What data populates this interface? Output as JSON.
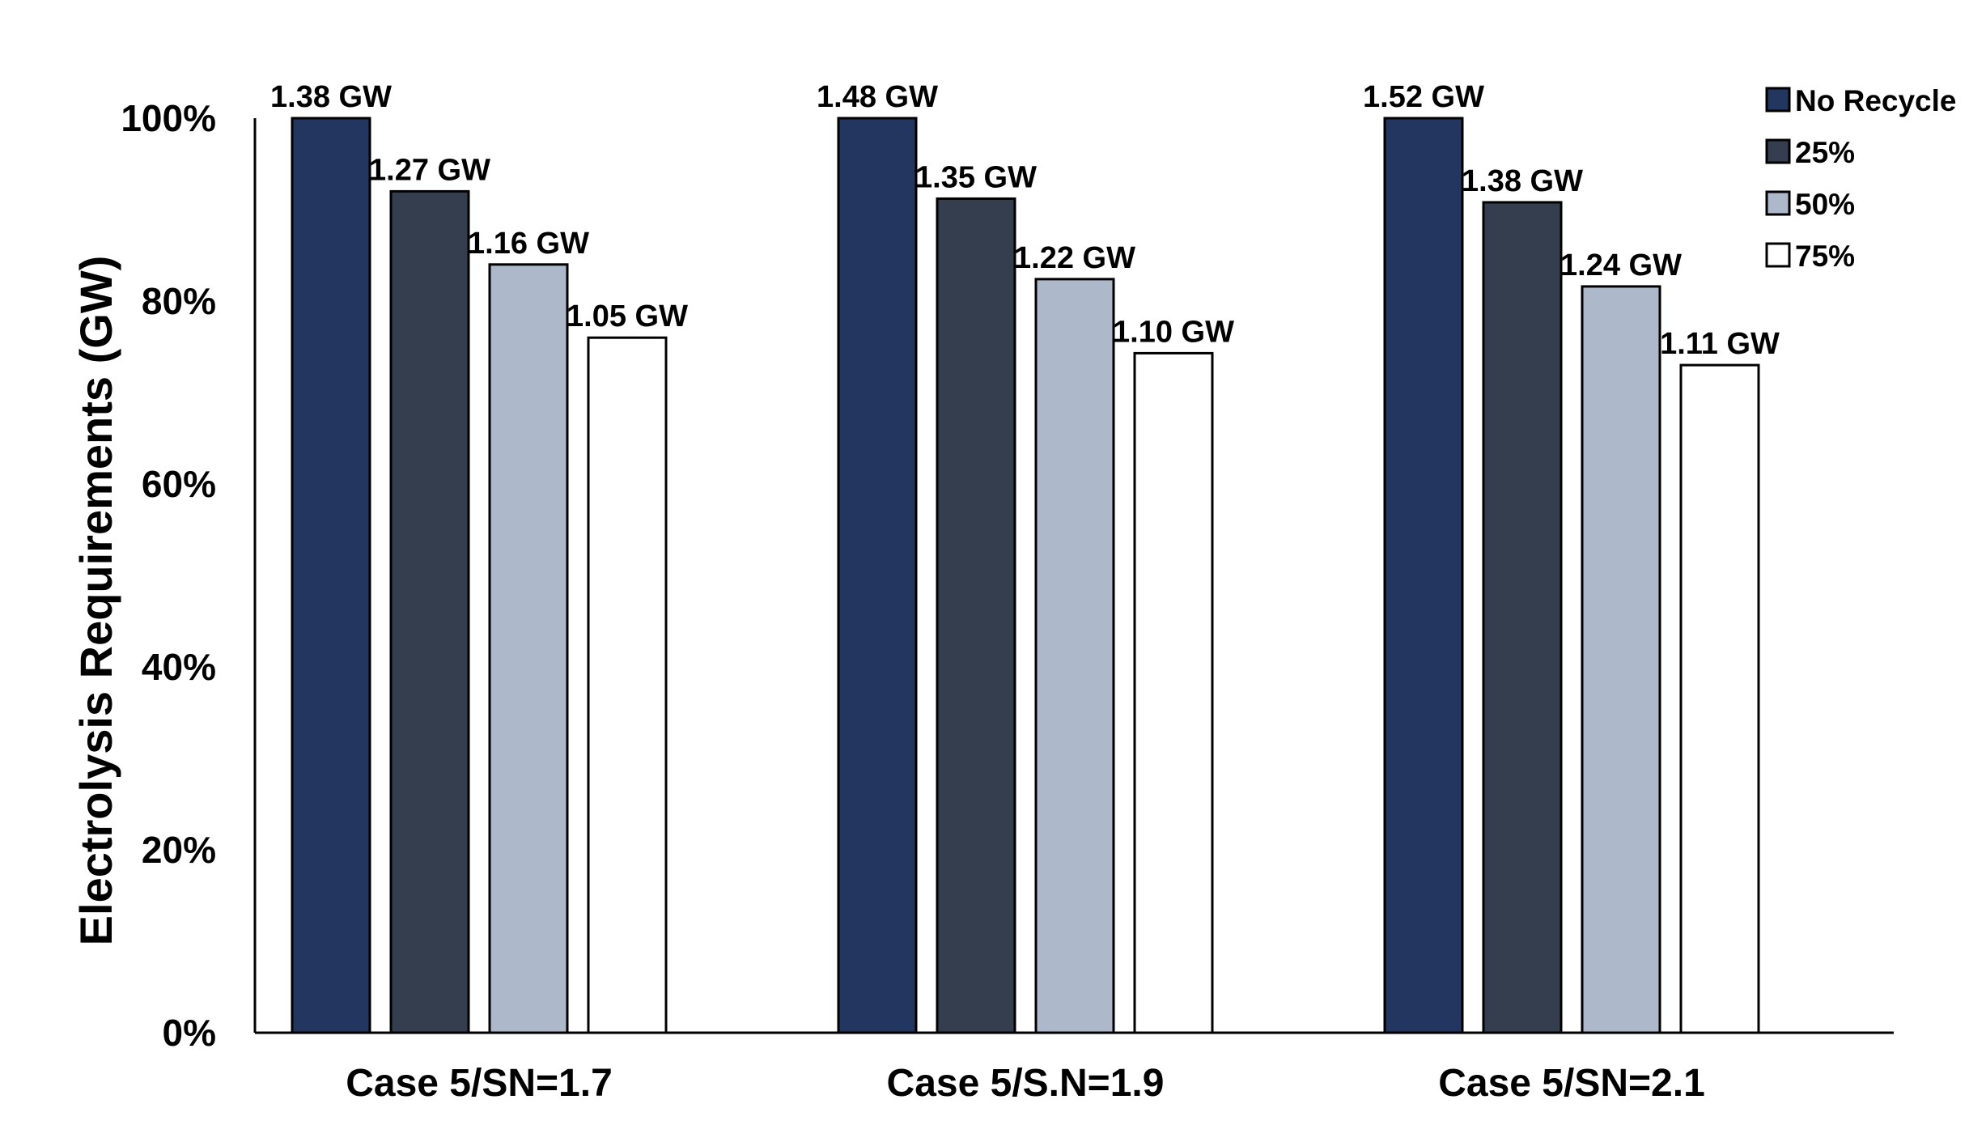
{
  "chart_data": {
    "type": "bar",
    "title": "",
    "xlabel": "",
    "ylabel": "Electrolysis Requirements (GW)",
    "ylim": [
      0,
      100
    ],
    "yticks": [
      "0%",
      "20%",
      "40%",
      "60%",
      "80%",
      "100%"
    ],
    "grid": false,
    "legend_position": "top-right",
    "categories": [
      "Case 5/SN=1.7",
      "Case 5/S.N=1.9",
      "Case 5/SN=2.1"
    ],
    "series": [
      {
        "name": "No Recycle",
        "color": "#22365F",
        "values": [
          100,
          100,
          100
        ],
        "labels": [
          "1.38 GW",
          "1.48 GW",
          "1.52 GW"
        ]
      },
      {
        "name": "25%",
        "color": "#343E4E",
        "values": [
          92,
          91.2,
          90.8
        ],
        "labels": [
          "1.27 GW",
          "1.35 GW",
          "1.38 GW"
        ]
      },
      {
        "name": "50%",
        "color": "#ADB8CA",
        "values": [
          84,
          82.4,
          81.6
        ],
        "labels": [
          "1.16 GW",
          "1.22 GW",
          "1.24 GW"
        ]
      },
      {
        "name": "75%",
        "color": "#FFFFFF",
        "values": [
          76,
          74.3,
          73.0
        ],
        "labels": [
          "1.05 GW",
          "1.10 GW",
          "1.11 GW"
        ]
      }
    ]
  }
}
